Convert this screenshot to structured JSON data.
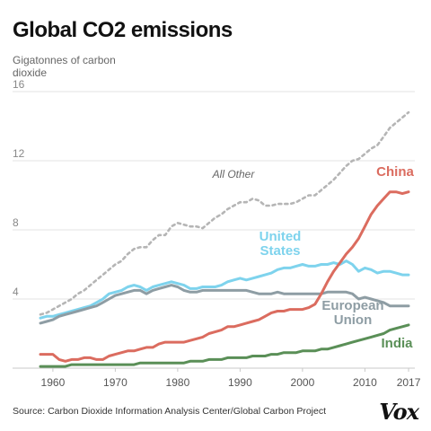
{
  "header": {
    "title": "Global CO2 emissions",
    "unit_label": "Gigatonnes of carbon dioxide"
  },
  "footer": {
    "source": "Source: Carbon Dioxide Information Analysis Center/Global Carbon Project",
    "logo": "Vox"
  },
  "chart_data": {
    "type": "line",
    "title": "Global CO2 emissions",
    "ylabel": "Gigatonnes of carbon dioxide",
    "xlabel": "",
    "xlim": [
      1958,
      2018
    ],
    "ylim": [
      0,
      16
    ],
    "yticks": [
      4,
      8,
      12,
      16
    ],
    "xtick_labels": [
      "1960",
      "1970",
      "1980",
      "1990",
      "2000",
      "2010",
      "2017"
    ],
    "grid": true,
    "x": [
      1958,
      1959,
      1960,
      1961,
      1962,
      1963,
      1964,
      1965,
      1966,
      1967,
      1968,
      1969,
      1970,
      1971,
      1972,
      1973,
      1974,
      1975,
      1976,
      1977,
      1978,
      1979,
      1980,
      1981,
      1982,
      1983,
      1984,
      1985,
      1986,
      1987,
      1988,
      1989,
      1990,
      1991,
      1992,
      1993,
      1994,
      1995,
      1996,
      1997,
      1998,
      1999,
      2000,
      2001,
      2002,
      2003,
      2004,
      2005,
      2006,
      2007,
      2008,
      2009,
      2010,
      2011,
      2012,
      2013,
      2014,
      2015,
      2016,
      2017
    ],
    "series": [
      {
        "name": "All Other",
        "color": "#b5b5b5",
        "dash": true,
        "values": [
          3.1,
          3.2,
          3.4,
          3.6,
          3.8,
          4.0,
          4.3,
          4.5,
          4.8,
          5.1,
          5.4,
          5.7,
          6.0,
          6.2,
          6.6,
          6.9,
          7.0,
          7.0,
          7.4,
          7.7,
          7.7,
          8.2,
          8.4,
          8.3,
          8.2,
          8.2,
          8.1,
          8.4,
          8.7,
          8.9,
          9.2,
          9.4,
          9.6,
          9.6,
          9.8,
          9.7,
          9.4,
          9.4,
          9.5,
          9.5,
          9.5,
          9.6,
          9.8,
          10.0,
          10.0,
          10.3,
          10.6,
          10.9,
          11.3,
          11.7,
          12.0,
          12.1,
          12.4,
          12.7,
          12.9,
          13.4,
          13.9,
          14.2,
          14.5,
          14.8
        ]
      },
      {
        "name": "United States",
        "color": "#7ed3ed",
        "dash": false,
        "values": [
          2.9,
          3.0,
          3.0,
          3.1,
          3.2,
          3.3,
          3.4,
          3.5,
          3.6,
          3.8,
          4.0,
          4.3,
          4.4,
          4.5,
          4.7,
          4.8,
          4.7,
          4.5,
          4.7,
          4.8,
          4.9,
          5.0,
          4.9,
          4.8,
          4.6,
          4.6,
          4.7,
          4.7,
          4.7,
          4.8,
          5.0,
          5.1,
          5.2,
          5.1,
          5.2,
          5.3,
          5.4,
          5.5,
          5.7,
          5.8,
          5.8,
          5.9,
          6.0,
          5.9,
          5.9,
          6.0,
          6.0,
          6.1,
          6.0,
          6.2,
          6.0,
          5.6,
          5.8,
          5.7,
          5.5,
          5.6,
          5.6,
          5.5,
          5.4,
          5.4
        ]
      },
      {
        "name": "European Union",
        "color": "#8e9da4",
        "dash": false,
        "values": [
          2.6,
          2.7,
          2.8,
          3.0,
          3.1,
          3.2,
          3.3,
          3.4,
          3.5,
          3.6,
          3.8,
          4.0,
          4.2,
          4.3,
          4.4,
          4.5,
          4.5,
          4.3,
          4.5,
          4.6,
          4.7,
          4.8,
          4.7,
          4.5,
          4.4,
          4.4,
          4.5,
          4.5,
          4.5,
          4.5,
          4.5,
          4.5,
          4.5,
          4.5,
          4.4,
          4.3,
          4.3,
          4.3,
          4.4,
          4.3,
          4.3,
          4.3,
          4.3,
          4.3,
          4.3,
          4.3,
          4.4,
          4.4,
          4.4,
          4.4,
          4.3,
          4.0,
          4.1,
          4.0,
          3.9,
          3.8,
          3.6,
          3.6,
          3.6,
          3.6
        ]
      },
      {
        "name": "China",
        "color": "#db6c5f",
        "dash": false,
        "values": [
          0.8,
          0.8,
          0.8,
          0.5,
          0.4,
          0.5,
          0.5,
          0.6,
          0.6,
          0.5,
          0.5,
          0.7,
          0.8,
          0.9,
          1.0,
          1.0,
          1.1,
          1.2,
          1.2,
          1.4,
          1.5,
          1.5,
          1.5,
          1.5,
          1.6,
          1.7,
          1.8,
          2.0,
          2.1,
          2.2,
          2.4,
          2.4,
          2.5,
          2.6,
          2.7,
          2.8,
          3.0,
          3.2,
          3.3,
          3.3,
          3.4,
          3.4,
          3.4,
          3.5,
          3.7,
          4.3,
          5.0,
          5.6,
          6.1,
          6.6,
          7.0,
          7.5,
          8.2,
          8.9,
          9.4,
          9.8,
          10.2,
          10.2,
          10.1,
          10.2
        ]
      },
      {
        "name": "India",
        "color": "#5a8f57",
        "dash": false,
        "values": [
          0.1,
          0.1,
          0.1,
          0.1,
          0.1,
          0.2,
          0.2,
          0.2,
          0.2,
          0.2,
          0.2,
          0.2,
          0.2,
          0.2,
          0.2,
          0.2,
          0.3,
          0.3,
          0.3,
          0.3,
          0.3,
          0.3,
          0.3,
          0.3,
          0.4,
          0.4,
          0.4,
          0.5,
          0.5,
          0.5,
          0.6,
          0.6,
          0.6,
          0.6,
          0.7,
          0.7,
          0.7,
          0.8,
          0.8,
          0.9,
          0.9,
          0.9,
          1.0,
          1.0,
          1.0,
          1.1,
          1.1,
          1.2,
          1.3,
          1.4,
          1.5,
          1.6,
          1.7,
          1.8,
          1.9,
          2.0,
          2.2,
          2.3,
          2.4,
          2.5
        ]
      }
    ],
    "annotations": [
      {
        "series": "All Other",
        "lines": [
          "All Other"
        ],
        "color": "#666666",
        "italic": true
      },
      {
        "series": "United States",
        "lines": [
          "United",
          "States"
        ],
        "color": "#7ed3ed"
      },
      {
        "series": "China",
        "lines": [
          "China"
        ],
        "color": "#db6c5f"
      },
      {
        "series": "European Union",
        "lines": [
          "European",
          "Union"
        ],
        "color": "#8e9da4"
      },
      {
        "series": "India",
        "lines": [
          "India"
        ],
        "color": "#5a8f57"
      }
    ]
  }
}
